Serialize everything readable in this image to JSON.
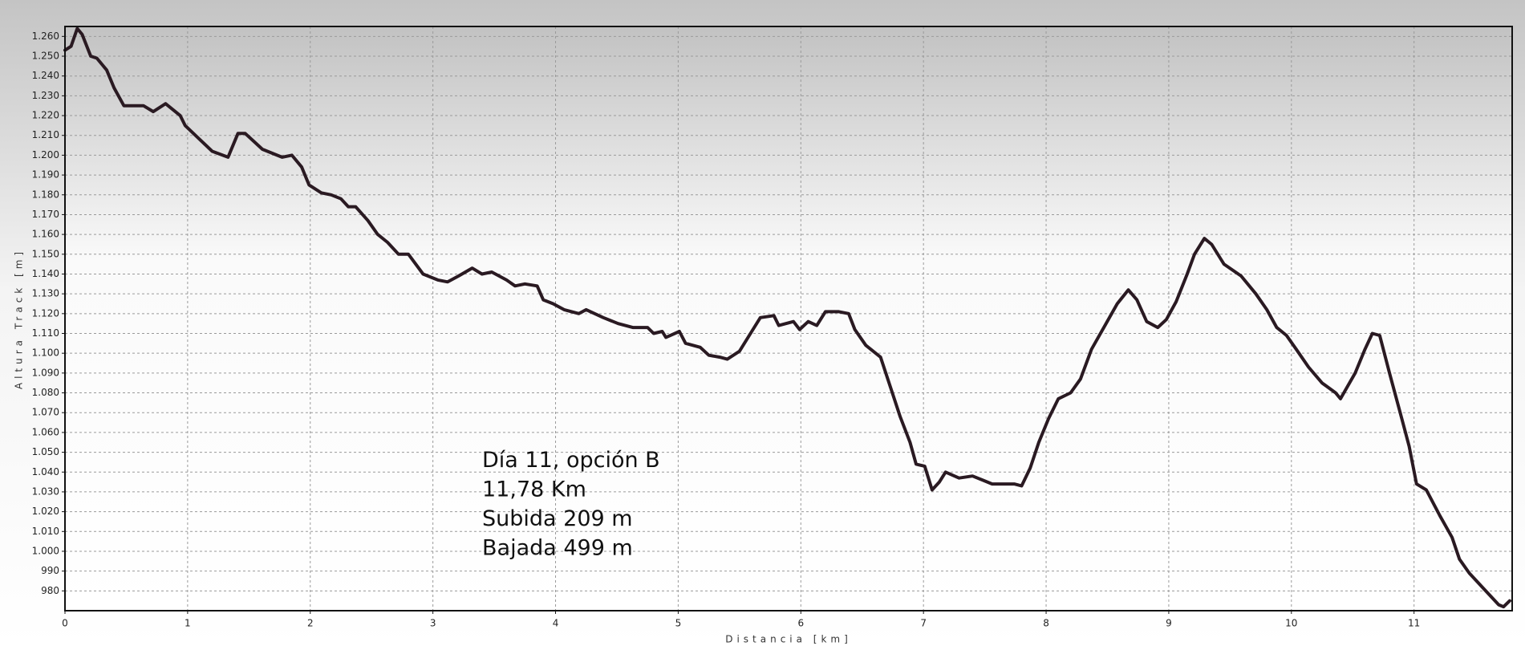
{
  "chart_data": {
    "type": "line",
    "x_label": "Distancia [km]",
    "y_label": "Altura Track [m]",
    "annotations": [
      "Día 11, opción B",
      "11,78 Km",
      "Subida 209 m",
      "Bajada 499 m"
    ],
    "color": "#2a1a22",
    "grid": true,
    "xlim": [
      0,
      11.8
    ],
    "ylim": [
      970,
      1265
    ],
    "xticks": [
      0,
      1,
      2,
      3,
      4,
      5,
      6,
      7,
      8,
      9,
      10,
      11
    ],
    "yticks": [
      980,
      990,
      {
        "value": 1000,
        "label": "1.000"
      },
      {
        "value": 1010,
        "label": "1.010"
      },
      {
        "value": 1020,
        "label": "1.020"
      },
      {
        "value": 1030,
        "label": "1.030"
      },
      {
        "value": 1040,
        "label": "1.040"
      },
      {
        "value": 1050,
        "label": "1.050"
      },
      {
        "value": 1060,
        "label": "1.060"
      },
      {
        "value": 1070,
        "label": "1.070"
      },
      {
        "value": 1080,
        "label": "1.080"
      },
      {
        "value": 1090,
        "label": "1.090"
      },
      {
        "value": 1100,
        "label": "1.100"
      },
      {
        "value": 1110,
        "label": "1.110"
      },
      {
        "value": 1120,
        "label": "1.120"
      },
      {
        "value": 1130,
        "label": "1.130"
      },
      {
        "value": 1140,
        "label": "1.140"
      },
      {
        "value": 1150,
        "label": "1.150"
      },
      {
        "value": 1160,
        "label": "1.160"
      },
      {
        "value": 1170,
        "label": "1.170"
      },
      {
        "value": 1180,
        "label": "1.180"
      },
      {
        "value": 1190,
        "label": "1.190"
      },
      {
        "value": 1200,
        "label": "1.200"
      },
      {
        "value": 1210,
        "label": "1.210"
      },
      {
        "value": 1220,
        "label": "1.220"
      },
      {
        "value": 1230,
        "label": "1.230"
      },
      {
        "value": 1240,
        "label": "1.240"
      },
      {
        "value": 1250,
        "label": "1.250"
      },
      {
        "value": 1260,
        "label": "1.260"
      }
    ],
    "x": [
      0,
      0.05,
      0.1,
      0.14,
      0.21,
      0.26,
      0.34,
      0.4,
      0.48,
      0.64,
      0.72,
      0.82,
      0.94,
      0.98,
      1.2,
      1.33,
      1.41,
      1.47,
      1.61,
      1.77,
      1.85,
      1.93,
      1.99,
      2.09,
      2.17,
      2.25,
      2.31,
      2.37,
      2.47,
      2.55,
      2.63,
      2.72,
      2.8,
      2.92,
      3.04,
      3.12,
      3.21,
      3.32,
      3.4,
      3.48,
      3.6,
      3.67,
      3.75,
      3.85,
      3.9,
      3.98,
      4.07,
      4.19,
      4.25,
      4.39,
      4.51,
      4.63,
      4.75,
      4.8,
      4.87,
      4.9,
      5.01,
      5.06,
      5.18,
      5.25,
      5.34,
      5.4,
      5.5,
      5.6,
      5.67,
      5.78,
      5.82,
      5.94,
      5.99,
      6.06,
      6.13,
      6.2,
      6.31,
      6.39,
      6.44,
      6.53,
      6.65,
      6.73,
      6.81,
      6.89,
      6.94,
      7.01,
      7.07,
      7.13,
      7.18,
      7.29,
      7.4,
      7.48,
      7.56,
      7.74,
      7.8,
      7.87,
      7.94,
      8.02,
      8.1,
      8.2,
      8.28,
      8.37,
      8.48,
      8.58,
      8.67,
      8.74,
      8.82,
      8.91,
      8.98,
      9.06,
      9.15,
      9.21,
      9.29,
      9.35,
      9.45,
      9.59,
      9.71,
      9.8,
      9.88,
      9.96,
      10.04,
      10.14,
      10.25,
      10.36,
      10.4,
      10.52,
      10.6,
      10.66,
      10.72,
      10.8,
      10.9,
      10.96,
      11.02,
      11.1,
      11.21,
      11.31,
      11.37,
      11.45,
      11.57,
      11.69,
      11.73,
      11.78
    ],
    "values": [
      1253,
      1255,
      1264,
      1261,
      1250,
      1249,
      1243,
      1234,
      1225,
      1225,
      1222,
      1226,
      1220,
      1215,
      1202,
      1199,
      1211,
      1211,
      1203,
      1199,
      1200,
      1194,
      1185,
      1181,
      1180,
      1178,
      1174,
      1174,
      1167,
      1160,
      1156,
      1150,
      1150,
      1140,
      1137,
      1136,
      1139,
      1143,
      1140,
      1141,
      1137,
      1134,
      1135,
      1134,
      1127,
      1125,
      1122,
      1120,
      1122,
      1118,
      1115,
      1113,
      1113,
      1110,
      1111,
      1108,
      1111,
      1105,
      1103,
      1099,
      1098,
      1097,
      1101,
      1111,
      1118,
      1119,
      1114,
      1116,
      1112,
      1116,
      1114,
      1121,
      1121,
      1120,
      1112,
      1104,
      1098,
      1083,
      1068,
      1055,
      1044,
      1043,
      1031,
      1035,
      1040,
      1037,
      1038,
      1036,
      1034,
      1034,
      1033,
      1042,
      1055,
      1067,
      1077,
      1080,
      1087,
      1102,
      1114,
      1125,
      1132,
      1127,
      1116,
      1113,
      1117,
      1126,
      1140,
      1150,
      1158,
      1155,
      1145,
      1139,
      1130,
      1122,
      1113,
      1109,
      1102,
      1093,
      1085,
      1080,
      1077,
      1090,
      1102,
      1110,
      1109,
      1090,
      1067,
      1053,
      1034,
      1031,
      1018,
      1007,
      996,
      989,
      981,
      973,
      972,
      975
    ]
  }
}
